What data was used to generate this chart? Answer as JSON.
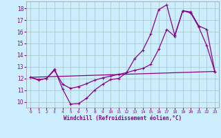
{
  "xlabel": "Windchill (Refroidissement éolien,°C)",
  "background_color": "#cceeff",
  "grid_color": "#aacccc",
  "line_color": "#880088",
  "xlim": [
    -0.5,
    23.5
  ],
  "ylim": [
    9.5,
    18.6
  ],
  "xticks": [
    0,
    1,
    2,
    3,
    4,
    5,
    6,
    7,
    8,
    9,
    10,
    11,
    12,
    13,
    14,
    15,
    16,
    17,
    18,
    19,
    20,
    21,
    22,
    23
  ],
  "yticks": [
    10,
    11,
    12,
    13,
    14,
    15,
    16,
    17,
    18
  ],
  "series1_x": [
    0,
    1,
    2,
    3,
    4,
    5,
    6,
    7,
    8,
    9,
    10,
    11,
    12,
    13,
    14,
    15,
    16,
    17,
    18,
    19,
    20,
    21,
    22,
    23
  ],
  "series1_y": [
    12.1,
    11.9,
    12.0,
    12.8,
    11.1,
    9.8,
    9.85,
    10.3,
    11.0,
    11.5,
    11.9,
    12.0,
    12.5,
    13.7,
    14.4,
    15.8,
    17.9,
    18.3,
    15.7,
    17.8,
    17.6,
    16.4,
    14.8,
    12.6
  ],
  "series2_x": [
    0,
    1,
    2,
    3,
    4,
    5,
    6,
    7,
    8,
    9,
    10,
    11,
    12,
    13,
    14,
    15,
    16,
    17,
    18,
    19,
    20,
    21,
    22,
    23
  ],
  "series2_y": [
    12.1,
    11.85,
    12.0,
    12.7,
    11.5,
    11.15,
    11.3,
    11.55,
    11.85,
    12.05,
    12.2,
    12.35,
    12.5,
    12.7,
    12.85,
    13.2,
    14.5,
    16.2,
    15.6,
    17.8,
    17.7,
    16.5,
    16.2,
    12.6
  ],
  "series3_x": [
    0,
    23
  ],
  "series3_y": [
    12.1,
    12.6
  ],
  "marker": "+"
}
